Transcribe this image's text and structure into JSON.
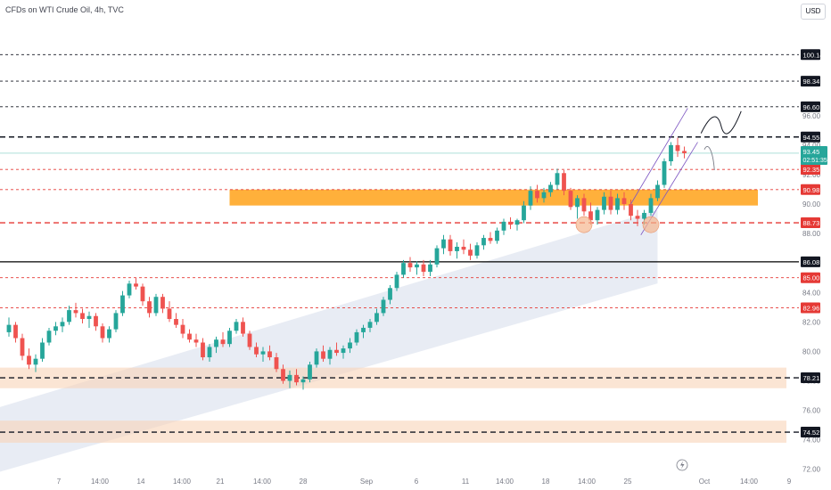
{
  "header": {
    "symbol": "CFDs on WTI Crude Oil, 4h, TVC"
  },
  "currency_button": "USD",
  "chart_data": {
    "type": "candlestick",
    "y_axis": {
      "ylim": [
        71.5,
        103
      ],
      "tick_labels": [
        "72.00",
        "74.00",
        "76.00",
        "78.00",
        "80.00",
        "82.00",
        "84.00",
        "86.00",
        "88.00",
        "90.00",
        "92.00",
        "94.00",
        "96.00"
      ]
    },
    "x_axis": {
      "tick_labels": [
        "7",
        "14:00",
        "14",
        "14:00",
        "21",
        "14:00",
        "28",
        "Sep",
        "6",
        "11",
        "14:00",
        "18",
        "14:00",
        "25",
        "Oct",
        "14:00",
        "9"
      ]
    },
    "price_levels": [
      {
        "value": 100.14,
        "label": "100.14",
        "style": "dashed",
        "color": "#131722",
        "label_bg": "#131722"
      },
      {
        "value": 98.34,
        "label": "98.34",
        "style": "dashed",
        "color": "#131722",
        "label_bg": "#131722"
      },
      {
        "value": 96.6,
        "label": "96.60",
        "style": "dashed",
        "color": "#131722",
        "label_bg": "#131722"
      },
      {
        "value": 94.55,
        "label": "94.55",
        "style": "dashed-bold",
        "color": "#131722",
        "label_bg": "#131722"
      },
      {
        "value": 92.35,
        "label": "92.35",
        "style": "dashed",
        "color": "#e53935",
        "label_bg": "#e53935"
      },
      {
        "value": 90.98,
        "label": "90.98",
        "style": "dashed",
        "color": "#e53935",
        "label_bg": "#e53935"
      },
      {
        "value": 88.73,
        "label": "88.73",
        "style": "dashed-bold",
        "color": "#e53935",
        "label_bg": "#e53935"
      },
      {
        "value": 86.08,
        "label": "86.08",
        "style": "solid",
        "color": "#000000",
        "label_bg": "#131722"
      },
      {
        "value": 85.0,
        "label": "85.00",
        "style": "dashed",
        "color": "#e53935",
        "label_bg": "#e53935"
      },
      {
        "value": 82.96,
        "label": "82.96",
        "style": "dashed",
        "color": "#e53935",
        "label_bg": "#e53935"
      },
      {
        "value": 78.21,
        "label": "78.21",
        "style": "dashed-bold",
        "color": "#131722",
        "label_bg": "#131722"
      },
      {
        "value": 74.52,
        "label": "74.52",
        "style": "dashed-bold",
        "color": "#131722",
        "label_bg": "#131722"
      }
    ],
    "current_price": {
      "value": 93.45,
      "label": "93.45",
      "countdown": "02:51:35",
      "color": "#26a69a"
    },
    "zones": [
      {
        "from": 89.9,
        "to": 90.98,
        "color": "#ffa726"
      },
      {
        "from": 77.5,
        "to": 78.9,
        "color": "#f8d4b8"
      },
      {
        "from": 73.8,
        "to": 75.3,
        "color": "#f8d4b8"
      }
    ],
    "candles": [
      [
        81.3,
        82.3,
        81.0,
        81.8
      ],
      [
        81.8,
        82.0,
        80.6,
        80.9
      ],
      [
        80.9,
        81.2,
        79.4,
        79.7
      ],
      [
        79.7,
        80.2,
        78.8,
        79.1
      ],
      [
        79.1,
        79.8,
        78.6,
        79.5
      ],
      [
        79.5,
        80.9,
        79.3,
        80.6
      ],
      [
        80.6,
        81.6,
        80.4,
        81.4
      ],
      [
        81.4,
        82.0,
        81.1,
        81.7
      ],
      [
        81.7,
        82.3,
        81.3,
        82.0
      ],
      [
        82.0,
        83.1,
        81.8,
        82.8
      ],
      [
        82.8,
        83.3,
        82.3,
        82.6
      ],
      [
        82.6,
        82.9,
        81.9,
        82.2
      ],
      [
        82.2,
        82.7,
        81.6,
        82.4
      ],
      [
        82.4,
        82.6,
        81.4,
        81.7
      ],
      [
        81.7,
        81.9,
        80.6,
        80.9
      ],
      [
        80.9,
        81.7,
        80.6,
        81.5
      ],
      [
        81.5,
        82.8,
        81.3,
        82.6
      ],
      [
        82.6,
        84.1,
        82.4,
        83.8
      ],
      [
        83.8,
        84.8,
        83.6,
        84.6
      ],
      [
        84.6,
        85.0,
        84.2,
        84.4
      ],
      [
        84.4,
        84.6,
        83.1,
        83.4
      ],
      [
        83.4,
        83.7,
        82.3,
        82.6
      ],
      [
        82.6,
        83.9,
        82.4,
        83.7
      ],
      [
        83.7,
        83.9,
        82.6,
        82.9
      ],
      [
        82.9,
        83.4,
        82.0,
        82.2
      ],
      [
        82.2,
        82.6,
        81.6,
        81.8
      ],
      [
        81.8,
        82.2,
        80.9,
        81.2
      ],
      [
        81.2,
        81.5,
        80.6,
        80.8
      ],
      [
        80.8,
        81.2,
        80.3,
        80.6
      ],
      [
        80.6,
        80.9,
        79.4,
        79.6
      ],
      [
        79.6,
        80.5,
        79.3,
        80.3
      ],
      [
        80.3,
        81.0,
        79.9,
        80.8
      ],
      [
        80.8,
        81.3,
        80.3,
        80.5
      ],
      [
        80.5,
        81.6,
        80.3,
        81.4
      ],
      [
        81.4,
        82.2,
        81.2,
        82.0
      ],
      [
        82.0,
        82.3,
        81.0,
        81.2
      ],
      [
        81.2,
        81.4,
        80.1,
        80.3
      ],
      [
        80.3,
        80.6,
        79.6,
        79.8
      ],
      [
        79.8,
        80.3,
        79.3,
        80.0
      ],
      [
        80.0,
        80.4,
        79.4,
        79.6
      ],
      [
        79.6,
        79.9,
        78.6,
        78.8
      ],
      [
        78.8,
        79.1,
        77.8,
        78.0
      ],
      [
        78.0,
        78.7,
        77.5,
        78.4
      ],
      [
        78.4,
        78.8,
        77.7,
        77.9
      ],
      [
        77.9,
        78.3,
        77.4,
        78.1
      ],
      [
        78.1,
        79.3,
        77.9,
        79.1
      ],
      [
        79.1,
        80.2,
        78.9,
        80.0
      ],
      [
        80.0,
        80.4,
        79.3,
        79.5
      ],
      [
        79.5,
        80.3,
        79.1,
        80.1
      ],
      [
        80.1,
        80.6,
        79.7,
        79.9
      ],
      [
        79.9,
        80.4,
        79.5,
        80.2
      ],
      [
        80.2,
        80.9,
        79.9,
        80.6
      ],
      [
        80.6,
        81.5,
        80.4,
        81.3
      ],
      [
        81.3,
        81.8,
        80.9,
        81.6
      ],
      [
        81.6,
        82.2,
        81.3,
        82.0
      ],
      [
        82.0,
        82.9,
        81.8,
        82.6
      ],
      [
        82.6,
        83.7,
        82.4,
        83.5
      ],
      [
        83.5,
        84.5,
        83.2,
        84.3
      ],
      [
        84.3,
        85.4,
        84.1,
        85.2
      ],
      [
        85.2,
        86.2,
        85.0,
        86.0
      ],
      [
        86.0,
        86.4,
        85.4,
        85.7
      ],
      [
        85.7,
        86.1,
        85.2,
        85.9
      ],
      [
        85.9,
        86.2,
        85.1,
        85.4
      ],
      [
        85.4,
        86.2,
        85.1,
        85.9
      ],
      [
        85.9,
        87.2,
        85.7,
        87.0
      ],
      [
        87.0,
        87.9,
        86.6,
        87.6
      ],
      [
        87.6,
        87.9,
        86.5,
        86.8
      ],
      [
        86.8,
        87.4,
        86.3,
        87.1
      ],
      [
        87.1,
        87.6,
        86.6,
        86.9
      ],
      [
        86.9,
        87.3,
        86.2,
        86.5
      ],
      [
        86.5,
        87.4,
        86.3,
        87.2
      ],
      [
        87.2,
        87.9,
        86.9,
        87.7
      ],
      [
        87.7,
        88.1,
        87.3,
        87.5
      ],
      [
        87.5,
        88.4,
        87.3,
        88.2
      ],
      [
        88.2,
        89.0,
        87.9,
        88.8
      ],
      [
        88.8,
        89.1,
        88.3,
        88.6
      ],
      [
        88.6,
        89.0,
        88.2,
        88.9
      ],
      [
        88.9,
        90.2,
        88.7,
        89.9
      ],
      [
        89.9,
        91.2,
        89.6,
        90.9
      ],
      [
        90.9,
        91.3,
        90.1,
        90.4
      ],
      [
        90.4,
        91.1,
        90.1,
        90.8
      ],
      [
        90.8,
        91.5,
        90.5,
        91.3
      ],
      [
        91.3,
        92.4,
        91.0,
        92.1
      ],
      [
        92.1,
        92.3,
        90.6,
        90.9
      ],
      [
        90.9,
        91.1,
        89.6,
        89.8
      ],
      [
        89.8,
        90.6,
        89.0,
        90.4
      ],
      [
        90.4,
        90.7,
        89.2,
        89.5
      ],
      [
        89.5,
        90.1,
        88.6,
        88.9
      ],
      [
        88.9,
        89.8,
        88.6,
        89.6
      ],
      [
        89.6,
        90.8,
        89.3,
        90.5
      ],
      [
        90.5,
        90.9,
        89.3,
        89.6
      ],
      [
        89.6,
        90.7,
        89.3,
        90.4
      ],
      [
        90.4,
        90.8,
        89.6,
        90.0
      ],
      [
        90.0,
        90.3,
        88.9,
        89.2
      ],
      [
        89.2,
        89.6,
        88.5,
        89.0
      ],
      [
        89.0,
        89.6,
        88.6,
        89.4
      ],
      [
        89.4,
        90.7,
        89.2,
        90.4
      ],
      [
        90.4,
        91.6,
        90.2,
        91.3
      ],
      [
        91.3,
        93.1,
        91.1,
        92.9
      ],
      [
        92.9,
        94.2,
        92.6,
        94.0
      ],
      [
        94.0,
        94.5,
        93.2,
        93.6
      ],
      [
        93.6,
        93.9,
        93.1,
        93.45
      ]
    ],
    "channels": [
      {
        "name": "main-ascending-channel",
        "color": "#d1d9ea"
      },
      {
        "name": "short-ascending-channel",
        "color": "#7e57c2"
      }
    ],
    "highlight_circles": [
      {
        "x_index": 86,
        "price": 88.6
      },
      {
        "x_index": 96,
        "price": 88.6
      }
    ]
  }
}
